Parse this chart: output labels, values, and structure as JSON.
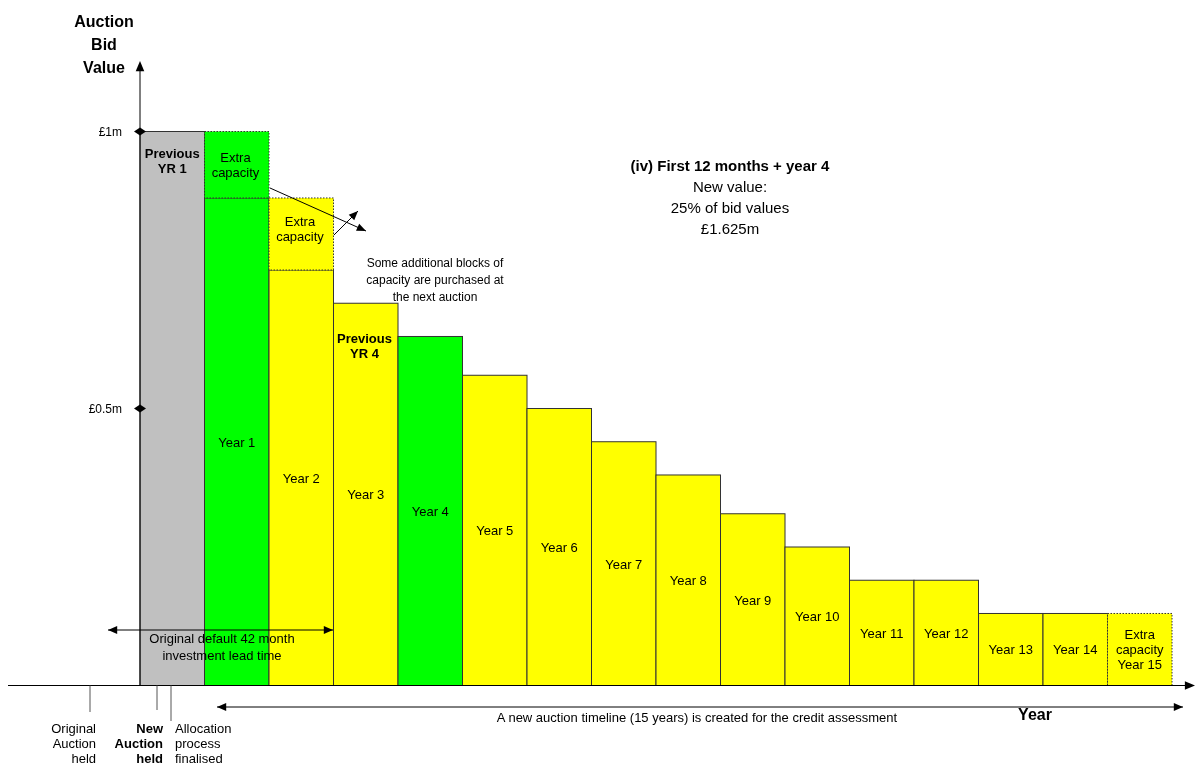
{
  "chart_data": {
    "type": "bar",
    "stacked": true,
    "title": "(iv) First 12 months + year 4",
    "subtitle": "New value:\n25% of bid values\n£1.625m",
    "ylabel": "Auction Bid Value",
    "xlabel": "Year",
    "categories": [
      "Previous YR 1",
      "Year 1",
      "Year 2",
      "Year 3",
      "Year 4",
      "Year 5",
      "Year 6",
      "Year 7",
      "Year 8",
      "Year 9",
      "Year 10",
      "Year 11",
      "Year 12",
      "Year 13",
      "Year 14",
      "Extra capacity Year 15"
    ],
    "series": [
      {
        "values": [
          1.0,
          0.88,
          0.75,
          0.69,
          0.63,
          0.56,
          0.5,
          0.44,
          0.38,
          0.31,
          0.25,
          0.19,
          0.19,
          0.13,
          0.13,
          null
        ],
        "colors": [
          "#c0c0c0",
          "#00ff00",
          "#ffff00",
          "#ffff00",
          "#00ff00",
          "#ffff00",
          "#ffff00",
          "#ffff00",
          "#ffff00",
          "#ffff00",
          "#ffff00",
          "#ffff00",
          "#ffff00",
          "#ffff00",
          "#ffff00",
          null
        ],
        "line_style": "solid"
      },
      {
        "values": [
          null,
          0.12,
          0.13,
          null,
          null,
          null,
          null,
          null,
          null,
          null,
          null,
          null,
          null,
          null,
          null,
          0.13
        ],
        "colors": [
          null,
          "#00ff00",
          "#ffff00",
          null,
          null,
          null,
          null,
          null,
          null,
          null,
          null,
          null,
          null,
          null,
          null,
          "#ffff00"
        ],
        "line_style": "dotted"
      }
    ],
    "ylim": [
      0,
      1.12
    ],
    "yticks": [
      {
        "value": 0.5,
        "label": "£0.5m"
      },
      {
        "value": 1,
        "label": "£1m"
      }
    ],
    "annotations": [
      "Extra capacity",
      "Extra capacity",
      "Previous YR 4",
      "Some additional blocks of capacity are purchased at the next auction",
      "Original default 42 month investment lead time",
      "A new auction timeline (15 years) is created for the credit assessment",
      "Original Auction held",
      "New Auction held",
      "Allocation process finalised"
    ]
  }
}
